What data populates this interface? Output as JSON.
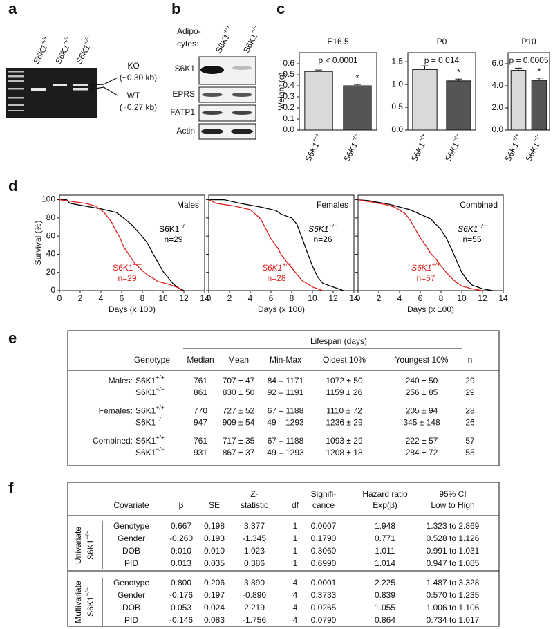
{
  "panels": [
    "a",
    "b",
    "c",
    "d",
    "e",
    "f"
  ],
  "gel": {
    "lanes": [
      "S6K1+/+",
      "S6K1−/−",
      "S6K1+/−"
    ],
    "bands": [
      "KO",
      "(~0.30 kb)",
      "WT",
      "(~0.27 kb)"
    ]
  },
  "blot": {
    "heading": [
      "Adipo-",
      "cytes:"
    ],
    "lanes": [
      "S6K1+/+",
      "S6K1−/−"
    ],
    "rows": [
      "S6K1",
      "EPRS",
      "FATP1",
      "Actin"
    ]
  },
  "chart_data": [
    {
      "type": "bar",
      "title": "E16.5",
      "ylabel": "Weight (g)",
      "annotation": "p < 0.0001",
      "marker": "*",
      "categories": [
        "S6K1+/+",
        "S6K1−/−"
      ],
      "values": [
        0.53,
        0.4
      ],
      "errors": [
        0.013,
        0.012
      ],
      "colors": [
        "#d9d9d9",
        "#555555"
      ],
      "ylim": [
        0,
        0.7
      ],
      "yticks": [
        {
          "value": 0,
          "label": "0.0"
        },
        0.1,
        0.2,
        0.3,
        0.4,
        0.5,
        0.6
      ]
    },
    {
      "type": "bar",
      "title": "P0",
      "annotation": "p = 0.014",
      "marker": "*",
      "categories": [
        "S6K1+/+",
        "S6K1−/−"
      ],
      "values": [
        1.33,
        1.08
      ],
      "errors": [
        0.08,
        0.04
      ],
      "colors": [
        "#d9d9d9",
        "#555555"
      ],
      "ylim": [
        0,
        1.7
      ],
      "yticks": [
        {
          "value": 0,
          "label": "0.0"
        },
        0.5,
        {
          "value": 1,
          "label": "1.0"
        },
        1.5
      ]
    },
    {
      "type": "bar",
      "title": "P10",
      "annotation": "p = 0.0005",
      "marker": "*",
      "categories": [
        "S6K1+/+",
        "S6K1−/−"
      ],
      "values": [
        5.4,
        4.5
      ],
      "errors": [
        0.2,
        0.2
      ],
      "colors": [
        "#d9d9d9",
        "#555555"
      ],
      "ylim": [
        0,
        7
      ],
      "yticks": [
        {
          "value": 0,
          "label": "0.0"
        },
        {
          "value": 2,
          "label": "2.0"
        },
        {
          "value": 4,
          "label": "4.0"
        },
        {
          "value": 6,
          "label": "6.0"
        }
      ]
    },
    {
      "type": "line",
      "title": "Males",
      "xlabel": "Days (x 100)",
      "ylabel": "Survival (%)",
      "label_style": "normal",
      "xlim": [
        0,
        14
      ],
      "xticks": [
        0,
        2,
        4,
        6,
        8,
        10,
        12,
        14
      ],
      "ylim": [
        0,
        105
      ],
      "yticks": [
        0,
        20,
        40,
        60,
        80,
        100
      ],
      "ytick_labels": true,
      "series": [
        {
          "name": "S6K1−/−",
          "n_label": "n=29",
          "color": "#000000",
          "x": [
            0,
            0.7,
            1,
            2.5,
            4,
            5.5,
            6.3,
            7,
            7.8,
            8.5,
            9,
            9.5,
            10,
            10.5,
            11,
            11.5,
            12
          ],
          "values": [
            100,
            100,
            96,
            93,
            90,
            86,
            79,
            72,
            62,
            52,
            41,
            31,
            21,
            14,
            7,
            3,
            0
          ]
        },
        {
          "name": "S6K1+/+",
          "n_label": "n=29",
          "color": "#e0201b",
          "x": [
            0,
            2.5,
            3.5,
            4.3,
            5,
            5.3,
            5.8,
            6.2,
            6.8,
            7.2,
            7.8,
            8.5,
            9,
            9.5,
            10.5,
            11.5,
            11.8
          ],
          "values": [
            100,
            96,
            93,
            86,
            76,
            69,
            59,
            48,
            38,
            31,
            24,
            17,
            14,
            10,
            7,
            3,
            0
          ]
        }
      ]
    },
    {
      "type": "line",
      "title": "Females",
      "xlabel": "Days (x 100)",
      "label_style": "italic",
      "xlim": [
        0,
        14
      ],
      "xticks": [
        0,
        2,
        4,
        6,
        8,
        10,
        12,
        14
      ],
      "ylim": [
        0,
        105
      ],
      "yticks": [
        0,
        20,
        40,
        60,
        80,
        100
      ],
      "ytick_labels": false,
      "series": [
        {
          "name": "S6K1−/−",
          "n_label": "n=26",
          "color": "#000000",
          "x": [
            0,
            1.5,
            3,
            5,
            6.5,
            7,
            8,
            8.5,
            9,
            9.5,
            10,
            10.5,
            11,
            12,
            13
          ],
          "values": [
            100,
            100,
            96,
            92,
            88,
            84,
            80,
            73,
            58,
            42,
            27,
            15,
            8,
            4,
            0
          ]
        },
        {
          "name": "S6K1+/+",
          "n_label": "n=28",
          "color": "#e0201b",
          "x": [
            0,
            0.7,
            2.5,
            4,
            5,
            5.5,
            6,
            6.7,
            7,
            7.5,
            8,
            8.5,
            9,
            10,
            11
          ],
          "values": [
            100,
            96,
            93,
            89,
            79,
            68,
            57,
            46,
            39,
            32,
            25,
            18,
            11,
            4,
            0
          ]
        }
      ]
    },
    {
      "type": "line",
      "title": "Combined",
      "xlabel": "Days (x 100)",
      "label_style": "italic",
      "xlim": [
        0,
        14
      ],
      "xticks": [
        0,
        2,
        4,
        6,
        8,
        10,
        12,
        14
      ],
      "ylim": [
        0,
        105
      ],
      "yticks": [
        0,
        20,
        40,
        60,
        80,
        100
      ],
      "ytick_labels": false,
      "series": [
        {
          "name": "S6K1−/−",
          "n_label": "n=55",
          "color": "#000000",
          "x": [
            0,
            1,
            2,
            3,
            4,
            5,
            6,
            7,
            7.5,
            8,
            8.5,
            9,
            9.5,
            10,
            10.5,
            11,
            12,
            13
          ],
          "values": [
            100,
            99,
            97,
            95,
            92,
            89,
            84,
            79,
            73,
            67,
            58,
            46,
            33,
            20,
            12,
            6,
            2,
            0
          ]
        },
        {
          "name": "S6K1+/+",
          "n_label": "n=57",
          "color": "#e0201b",
          "x": [
            0,
            1,
            2.5,
            3.5,
            4.5,
            5,
            5.5,
            6,
            6.5,
            7,
            7.5,
            8,
            8.5,
            9,
            9.5,
            10,
            11,
            12
          ],
          "values": [
            100,
            98,
            95,
            92,
            85,
            78,
            68,
            58,
            50,
            41,
            35,
            27,
            20,
            14,
            9,
            5,
            2,
            0
          ]
        }
      ]
    }
  ],
  "table_e": {
    "header": "Lifespan (days)",
    "columns": [
      "Genotype",
      "Median",
      "Mean",
      "Min-Max",
      "Oldest 10%",
      "Youngest 10%",
      "n"
    ],
    "groups": [
      {
        "label": "Males:",
        "rows": [
          [
            "S6K1+/+",
            "761",
            "707 ± 47",
            "84 – 1171",
            "1072 ± 50",
            "240 ± 50",
            "29"
          ],
          [
            "S6K1−/−",
            "861",
            "830 ± 50",
            "92 – 1191",
            "1159 ± 26",
            "256 ± 85",
            "29"
          ]
        ]
      },
      {
        "label": "Females:",
        "rows": [
          [
            "S6K1+/+",
            "770",
            "727 ± 52",
            "67 – 1188",
            "1110 ± 72",
            "205 ± 94",
            "28"
          ],
          [
            "S6K1−/−",
            "947",
            "909 ± 54",
            "49 – 1293",
            "1236 ± 29",
            "345 ± 148",
            "26"
          ]
        ]
      },
      {
        "label": "Combined:",
        "rows": [
          [
            "S6K1+/+",
            "761",
            "717 ± 35",
            "67 – 1188",
            "1093 ± 29",
            "222 ± 57",
            "57"
          ],
          [
            "S6K1−/−",
            "931",
            "867 ± 37",
            "49 – 1293",
            "1208 ± 18",
            "284 ± 72",
            "55"
          ]
        ]
      }
    ]
  },
  "table_f": {
    "columns": [
      [
        "Covariate"
      ],
      [
        "β"
      ],
      [
        "SE"
      ],
      [
        "Z-",
        "statistic"
      ],
      [
        "df"
      ],
      [
        "Signifi-",
        "cance"
      ],
      [
        "Hazard ratio",
        "Exp(β)"
      ],
      [
        "95% CI",
        "Low to High"
      ]
    ],
    "groups": [
      {
        "label": [
          "Univariate",
          "S6K1−/−"
        ],
        "rows": [
          [
            "Genotype",
            "0.667",
            "0.198",
            "3.377",
            "1",
            "0.0007",
            "1.948",
            "1.323 to 2.869"
          ],
          [
            "Gender",
            "-0.260",
            "0.193",
            "-1.345",
            "1",
            "0.1790",
            "0.771",
            "0.528 to 1.126"
          ],
          [
            "DOB",
            "0.010",
            "0.010",
            "1.023",
            "1",
            "0.3060",
            "1.011",
            "0.991 to 1.031"
          ],
          [
            "PID",
            "0.013",
            "0.035",
            "0.386",
            "1",
            "0.6990",
            "1.014",
            "0.947 to 1.085"
          ]
        ]
      },
      {
        "label": [
          "Multivariate",
          "S6K1−/−"
        ],
        "rows": [
          [
            "Genotype",
            "0.800",
            "0.206",
            "3.890",
            "4",
            "0.0001",
            "2.225",
            "1.487 to 3.328"
          ],
          [
            "Gender",
            "-0.176",
            "0.197",
            "-0.890",
            "4",
            "0.3733",
            "0.839",
            "0.570 to 1.235"
          ],
          [
            "DOB",
            "0.053",
            "0.024",
            "2.219",
            "4",
            "0.0265",
            "1.055",
            "1.006 to 1.106"
          ],
          [
            "PID",
            "-0.146",
            "0.083",
            "-1.756",
            "4",
            "0.0790",
            "0.864",
            "0.734 to 1.017"
          ]
        ]
      }
    ]
  }
}
